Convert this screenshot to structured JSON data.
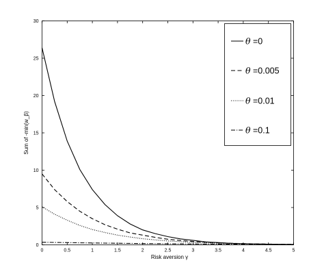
{
  "chart_data": {
    "type": "line",
    "xlabel": "Risk aversion γ",
    "ylabel": "Sum of -min(w_β)",
    "xlim": [
      0,
      5
    ],
    "ylim": [
      0,
      30
    ],
    "xticks": [
      0,
      0.5,
      1,
      1.5,
      2,
      2.5,
      3,
      3.5,
      4,
      4.5,
      5
    ],
    "xtick_labels": [
      "0",
      "0.5",
      "1",
      "1.5",
      "2",
      "2.5",
      "3",
      "3.5",
      "4",
      "4.5",
      "5"
    ],
    "yticks": [
      0,
      5,
      10,
      15,
      20,
      25,
      30
    ],
    "ytick_labels": [
      "0",
      "5",
      "10",
      "15",
      "20",
      "25",
      "30"
    ],
    "grid": false,
    "legend_position": "top-right",
    "x": [
      0,
      0.25,
      0.5,
      0.75,
      1,
      1.25,
      1.5,
      1.75,
      2,
      2.25,
      2.5,
      2.75,
      3,
      3.25,
      3.5,
      3.75,
      4,
      4.25,
      4.5,
      4.75,
      5
    ],
    "series": [
      {
        "name": "θ =0",
        "line_style": "solid",
        "values": [
          26.4,
          19.2,
          13.9,
          10.1,
          7.4,
          5.4,
          3.9,
          2.8,
          2.0,
          1.5,
          1.1,
          0.8,
          0.6,
          0.4,
          0.3,
          0.2,
          0.16,
          0.12,
          0.09,
          0.06,
          0.05
        ]
      },
      {
        "name": "θ =0.005",
        "line_style": "dashed",
        "values": [
          9.5,
          7.4,
          5.8,
          4.5,
          3.5,
          2.7,
          2.1,
          1.6,
          1.3,
          1.0,
          0.75,
          0.58,
          0.45,
          0.35,
          0.27,
          0.21,
          0.16,
          0.13,
          0.1,
          0.08,
          0.06
        ]
      },
      {
        "name": "θ =0.01",
        "line_style": "dotted",
        "values": [
          5.1,
          4.1,
          3.3,
          2.6,
          2.05,
          1.65,
          1.3,
          1.05,
          0.82,
          0.66,
          0.52,
          0.42,
          0.33,
          0.27,
          0.21,
          0.17,
          0.13,
          0.11,
          0.09,
          0.07,
          0.05
        ]
      },
      {
        "name": "θ =0.1",
        "line_style": "dashdot",
        "values": [
          0.35,
          0.32,
          0.3,
          0.27,
          0.25,
          0.23,
          0.21,
          0.19,
          0.17,
          0.16,
          0.14,
          0.13,
          0.12,
          0.11,
          0.1,
          0.09,
          0.08,
          0.07,
          0.07,
          0.06,
          0.06
        ]
      }
    ]
  }
}
